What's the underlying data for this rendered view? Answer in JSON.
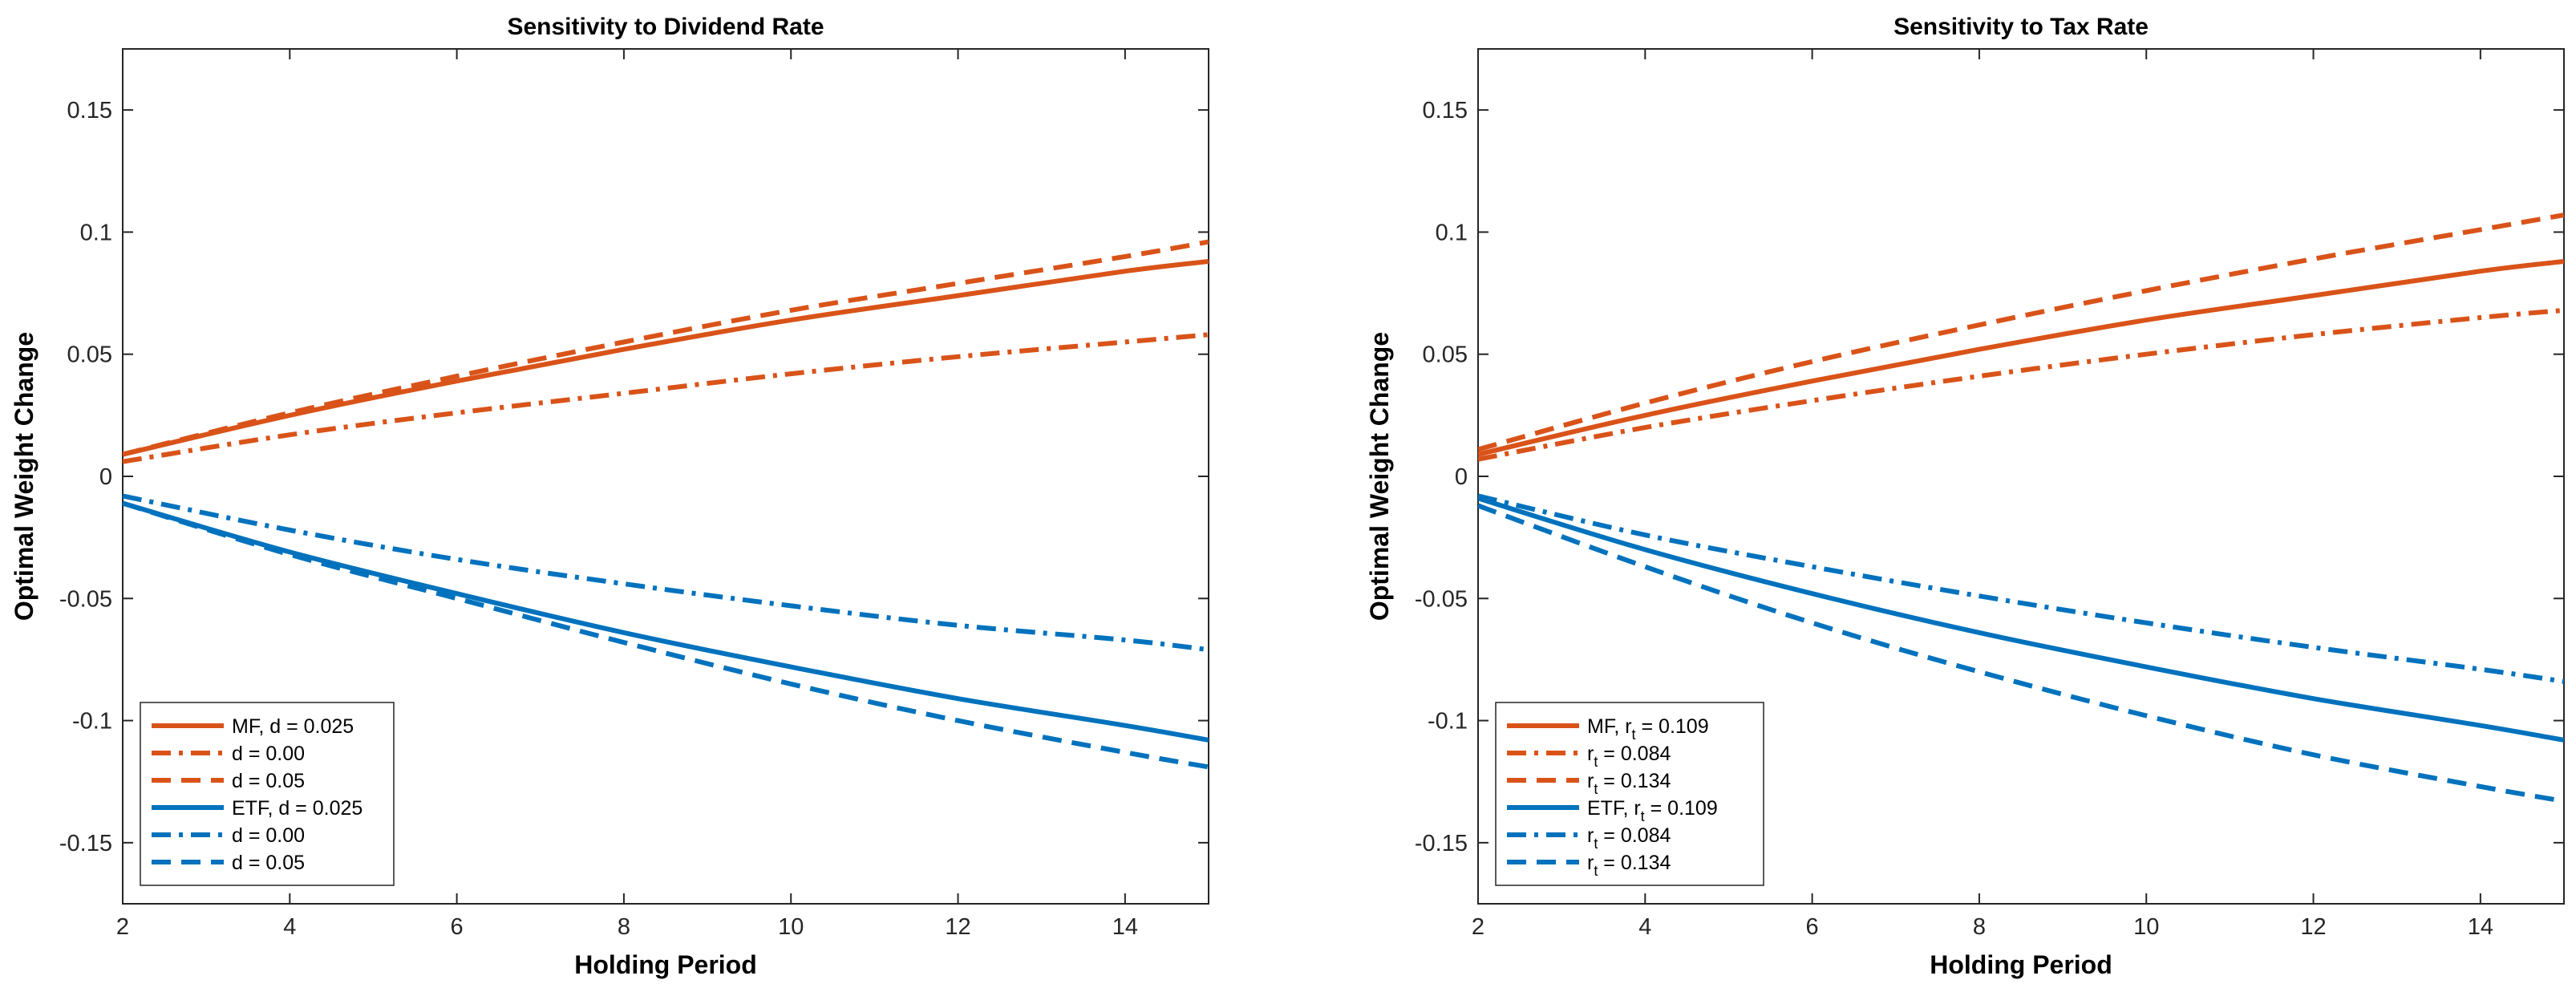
{
  "colors": {
    "mf": "#d95319",
    "etf": "#0072bd",
    "axis": "#262626",
    "background": "#ffffff"
  },
  "chart_data": [
    {
      "type": "line",
      "title": "Sensitivity to Dividend Rate",
      "xlabel": "Holding Period",
      "ylabel": "Optimal Weight Change",
      "xlim": [
        2,
        15
      ],
      "ylim": [
        -0.175,
        0.175
      ],
      "xticks": [
        2,
        4,
        6,
        8,
        10,
        12,
        14
      ],
      "xtick_labels": [
        "2",
        "4",
        "6",
        "8",
        "10",
        "12",
        "14"
      ],
      "yticks": [
        -0.15,
        -0.1,
        -0.05,
        0,
        0.05,
        0.1,
        0.15
      ],
      "ytick_labels": [
        "-0.15",
        "-0.1",
        "-0.05",
        "0",
        "0.05",
        "0.1",
        "0.15"
      ],
      "grid": false,
      "legend_position": "bottom-left",
      "x": [
        2,
        4,
        6,
        8,
        10,
        12,
        14,
        15
      ],
      "series": [
        {
          "name": "MF, d = 0.025",
          "legend": {
            "main": "MF, d = 0.025"
          },
          "color": "mf",
          "style": "solid",
          "values": [
            0.009,
            0.025,
            0.039,
            0.052,
            0.064,
            0.074,
            0.084,
            0.088
          ]
        },
        {
          "name": "d = 0.00",
          "legend": {
            "main": "d = 0.00"
          },
          "color": "mf",
          "style": "dashdot",
          "values": [
            0.006,
            0.017,
            0.026,
            0.034,
            0.042,
            0.049,
            0.055,
            0.058
          ]
        },
        {
          "name": "d = 0.05",
          "legend": {
            "main": "d = 0.05"
          },
          "color": "mf",
          "style": "dashed",
          "values": [
            0.009,
            0.026,
            0.041,
            0.055,
            0.068,
            0.079,
            0.09,
            0.096
          ]
        },
        {
          "name": "ETF, d = 0.025",
          "legend": {
            "main": "ETF, d = 0.025"
          },
          "color": "etf",
          "style": "solid",
          "values": [
            -0.011,
            -0.031,
            -0.048,
            -0.064,
            -0.078,
            -0.091,
            -0.102,
            -0.108
          ]
        },
        {
          "name": "d = 0.00",
          "legend": {
            "main": "d = 0.00"
          },
          "color": "etf",
          "style": "dashdot",
          "values": [
            -0.008,
            -0.022,
            -0.034,
            -0.044,
            -0.053,
            -0.061,
            -0.067,
            -0.071
          ]
        },
        {
          "name": "d = 0.05",
          "legend": {
            "main": "d = 0.05"
          },
          "color": "etf",
          "style": "dashed",
          "values": [
            -0.011,
            -0.032,
            -0.05,
            -0.068,
            -0.085,
            -0.1,
            -0.113,
            -0.119
          ]
        }
      ]
    },
    {
      "type": "line",
      "title": "Sensitivity to Tax Rate",
      "xlabel": "Holding Period",
      "ylabel": "Optimal Weight Change",
      "xlim": [
        2,
        15
      ],
      "ylim": [
        -0.175,
        0.175
      ],
      "xticks": [
        2,
        4,
        6,
        8,
        10,
        12,
        14
      ],
      "xtick_labels": [
        "2",
        "4",
        "6",
        "8",
        "10",
        "12",
        "14"
      ],
      "yticks": [
        -0.15,
        -0.1,
        -0.05,
        0,
        0.05,
        0.1,
        0.15
      ],
      "ytick_labels": [
        "-0.15",
        "-0.1",
        "-0.05",
        "0",
        "0.05",
        "0.1",
        "0.15"
      ],
      "grid": false,
      "legend_position": "bottom-left",
      "x": [
        2,
        4,
        6,
        8,
        10,
        12,
        14,
        15
      ],
      "series": [
        {
          "name": "MF, r t = 0.109",
          "legend": {
            "main": "MF, r",
            "sub": "t",
            "rest": " = 0.109"
          },
          "color": "mf",
          "style": "solid",
          "values": [
            0.009,
            0.025,
            0.039,
            0.052,
            0.064,
            0.074,
            0.084,
            0.088
          ]
        },
        {
          "name": "r t = 0.084",
          "legend": {
            "main": "r",
            "sub": "t",
            "rest": " = 0.084"
          },
          "color": "mf",
          "style": "dashdot",
          "values": [
            0.007,
            0.02,
            0.031,
            0.041,
            0.05,
            0.058,
            0.065,
            0.068
          ]
        },
        {
          "name": "r t = 0.134",
          "legend": {
            "main": "r",
            "sub": "t",
            "rest": " = 0.134"
          },
          "color": "mf",
          "style": "dashed",
          "values": [
            0.011,
            0.03,
            0.047,
            0.062,
            0.076,
            0.089,
            0.101,
            0.107
          ]
        },
        {
          "name": "ETF, r t = 0.109",
          "legend": {
            "main": "ETF, r",
            "sub": "t",
            "rest": " = 0.109"
          },
          "color": "etf",
          "style": "solid",
          "values": [
            -0.009,
            -0.03,
            -0.048,
            -0.064,
            -0.078,
            -0.091,
            -0.102,
            -0.108
          ]
        },
        {
          "name": "r t = 0.084",
          "legend": {
            "main": "r",
            "sub": "t",
            "rest": " = 0.084"
          },
          "color": "etf",
          "style": "dashdot",
          "values": [
            -0.008,
            -0.024,
            -0.037,
            -0.049,
            -0.06,
            -0.07,
            -0.079,
            -0.084
          ]
        },
        {
          "name": "r t = 0.134",
          "legend": {
            "main": "r",
            "sub": "t",
            "rest": " = 0.134"
          },
          "color": "etf",
          "style": "dashed",
          "values": [
            -0.012,
            -0.037,
            -0.06,
            -0.08,
            -0.098,
            -0.114,
            -0.127,
            -0.133
          ]
        }
      ]
    }
  ]
}
